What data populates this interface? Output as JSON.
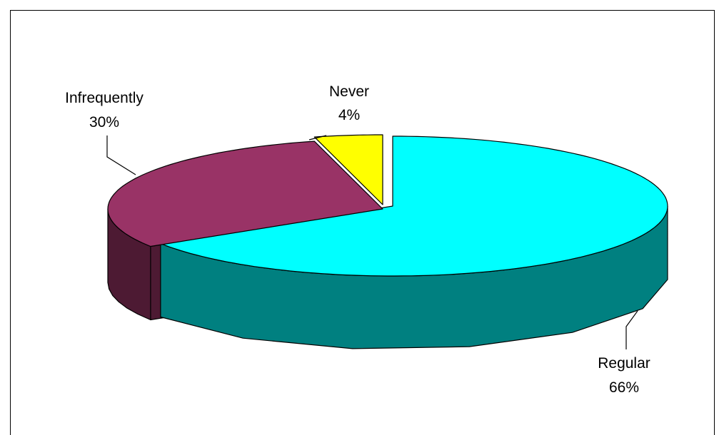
{
  "chart_data": {
    "type": "pie",
    "style": "3d-exploded",
    "categories": [
      "Regular",
      "Infrequently",
      "Never"
    ],
    "values": [
      66,
      30,
      4
    ],
    "value_labels": [
      "66%",
      "30%",
      "4%"
    ],
    "colors": {
      "Regular": {
        "top": "#00ffff",
        "side": "#008080"
      },
      "Infrequently": {
        "top": "#993366",
        "side": "#4d1a33"
      },
      "Never": {
        "top": "#ffff00",
        "side": "#808000"
      }
    },
    "legend": "none"
  }
}
